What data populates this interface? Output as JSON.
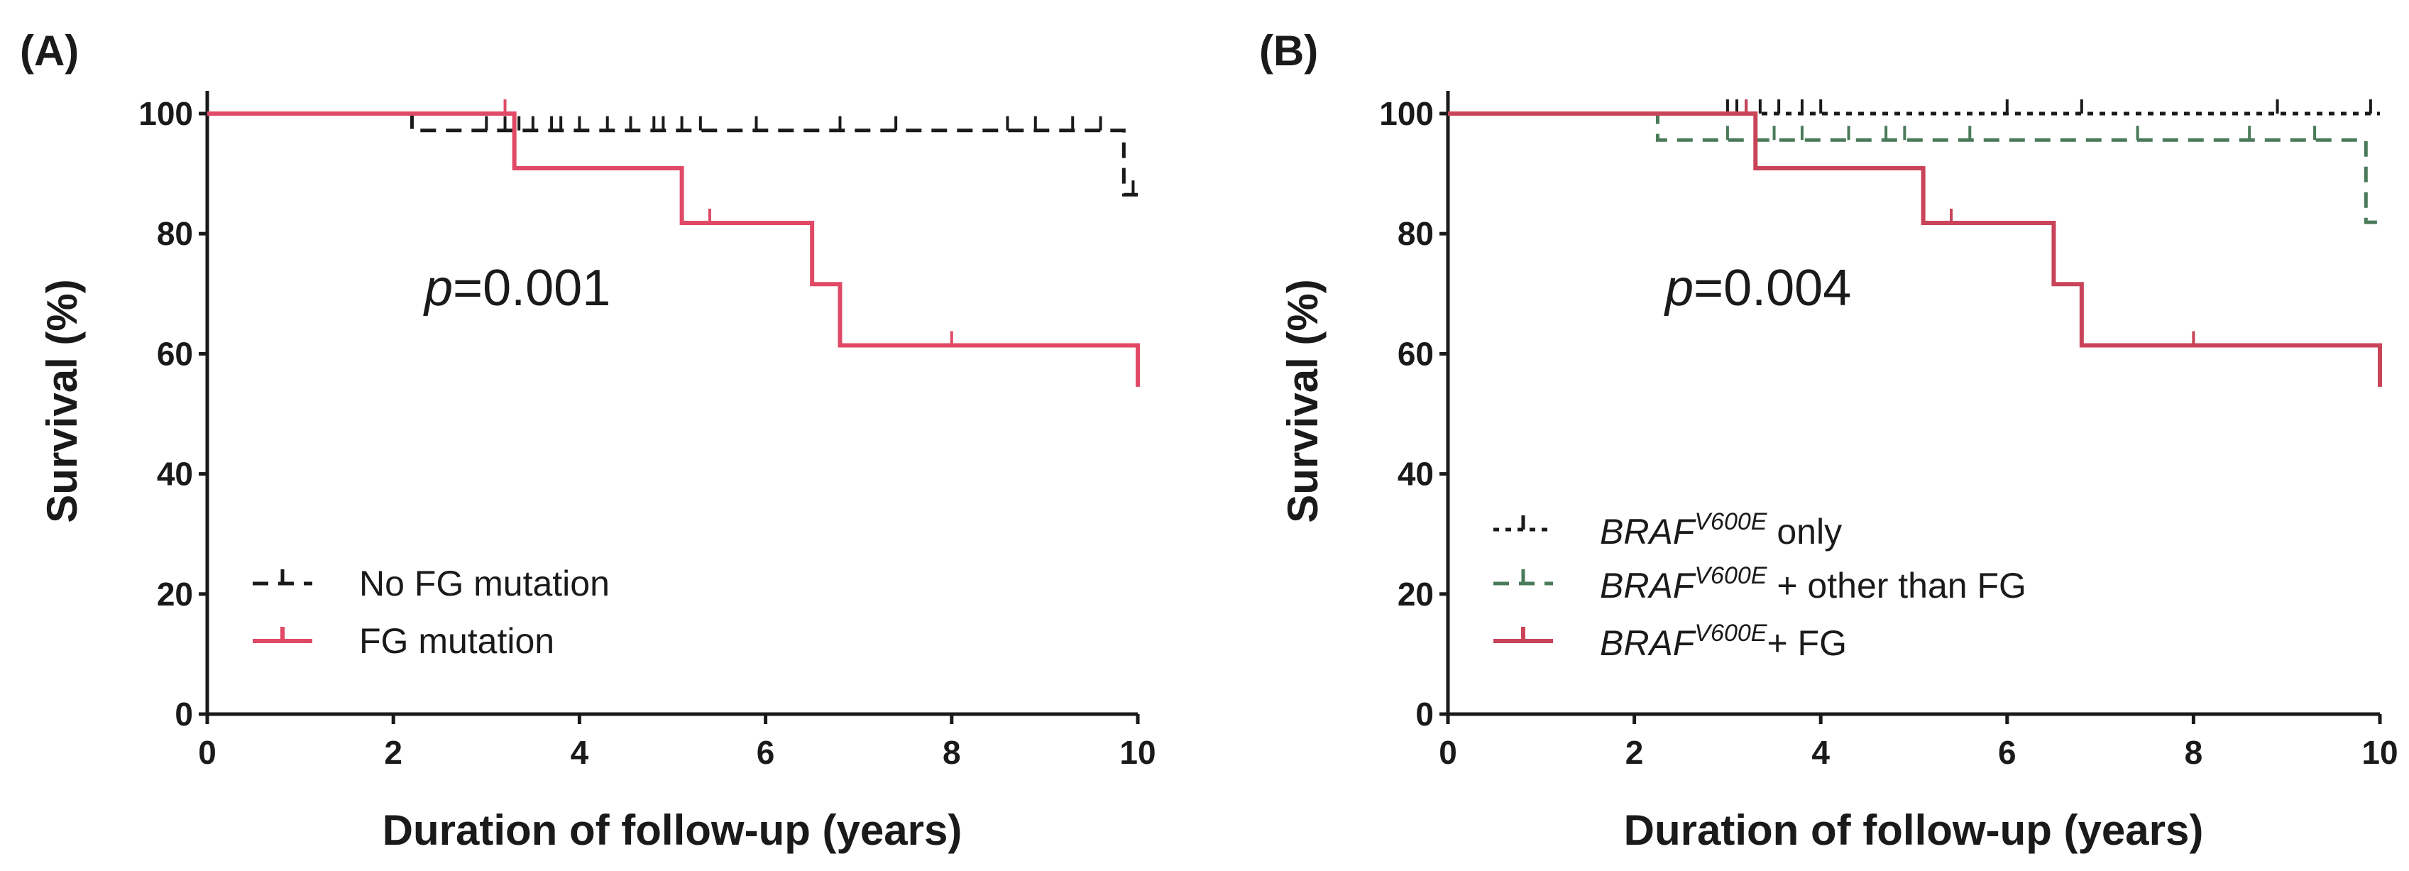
{
  "chart_data": [
    {
      "type": "line",
      "panel_label": "(A)",
      "title": "",
      "xlabel": "Duration of follow-up (years)",
      "ylabel": "Survival (%)",
      "xlim": [
        0,
        10
      ],
      "ylim": [
        0,
        100
      ],
      "xticks": [
        "0",
        "2",
        "4",
        "6",
        "8",
        "10"
      ],
      "yticks": [
        "0",
        "20",
        "40",
        "60",
        "80",
        "100"
      ],
      "annotation": {
        "italic": "p",
        "text": "=0.001"
      },
      "legend_position": "bottom-left",
      "series": [
        {
          "name": "No FG mutation",
          "color": "#1a1a1a",
          "style": "dashed",
          "steps": [
            [
              0,
              100
            ],
            [
              2.2,
              97.2
            ],
            [
              9.85,
              86.5
            ],
            [
              10,
              86.5
            ]
          ],
          "censored": [
            3.0,
            3.2,
            3.35,
            3.5,
            3.7,
            3.8,
            4.0,
            4.3,
            4.55,
            4.8,
            4.9,
            5.1,
            5.3,
            5.9,
            6.8,
            7.4,
            8.6,
            8.9,
            9.3,
            9.6,
            9.95
          ]
        },
        {
          "name": "FG mutation",
          "color": "#e04a66",
          "style": "solid",
          "steps": [
            [
              0,
              100
            ],
            [
              3.3,
              90.9
            ],
            [
              5.1,
              81.8
            ],
            [
              6.5,
              71.6
            ],
            [
              6.8,
              61.4
            ],
            [
              10,
              54.5
            ]
          ],
          "censored": [
            3.2,
            5.4,
            8.0
          ]
        }
      ]
    },
    {
      "type": "line",
      "panel_label": "(B)",
      "title": "",
      "xlabel": "Duration of follow-up (years)",
      "ylabel": "Survival (%)",
      "xlim": [
        0,
        10
      ],
      "ylim": [
        0,
        100
      ],
      "xticks": [
        "0",
        "2",
        "4",
        "6",
        "8",
        "10"
      ],
      "yticks": [
        "0",
        "20",
        "40",
        "60",
        "80",
        "100"
      ],
      "annotation": {
        "italic": "p",
        "text": "=0.004"
      },
      "legend_position": "bottom-left",
      "series": [
        {
          "name": "BRAFV600E only",
          "label_italic": "BRAF",
          "label_sup": "V600E",
          "label_rest": " only",
          "color": "#1a1a1a",
          "style": "dotted",
          "steps": [
            [
              0,
              100
            ],
            [
              10,
              100
            ]
          ],
          "censored": [
            3.0,
            3.1,
            3.2,
            3.35,
            3.55,
            3.8,
            4.0,
            6.0,
            6.8,
            8.9,
            9.9
          ]
        },
        {
          "name": "BRAFV600E + other than FG",
          "label_italic": "BRAF",
          "label_sup": "V600E",
          "label_rest": " + other than FG",
          "color": "#4a7a5a",
          "style": "dashed",
          "steps": [
            [
              0,
              100
            ],
            [
              2.25,
              95.6
            ],
            [
              9.85,
              81.9
            ],
            [
              10,
              81.9
            ]
          ],
          "censored": [
            3.0,
            3.5,
            3.8,
            4.3,
            4.7,
            4.9,
            5.6,
            7.4,
            8.6,
            9.3
          ]
        },
        {
          "name": "BRAFV600E+ FG",
          "label_italic": "BRAF",
          "label_sup": "V600E",
          "label_rest": "+ FG",
          "color": "#c94459",
          "style": "solid",
          "steps": [
            [
              0,
              100
            ],
            [
              3.3,
              90.9
            ],
            [
              5.1,
              81.8
            ],
            [
              6.5,
              71.6
            ],
            [
              6.8,
              61.4
            ],
            [
              10,
              54.5
            ]
          ],
          "censored": [
            3.2,
            5.4,
            8.0
          ]
        }
      ]
    }
  ]
}
